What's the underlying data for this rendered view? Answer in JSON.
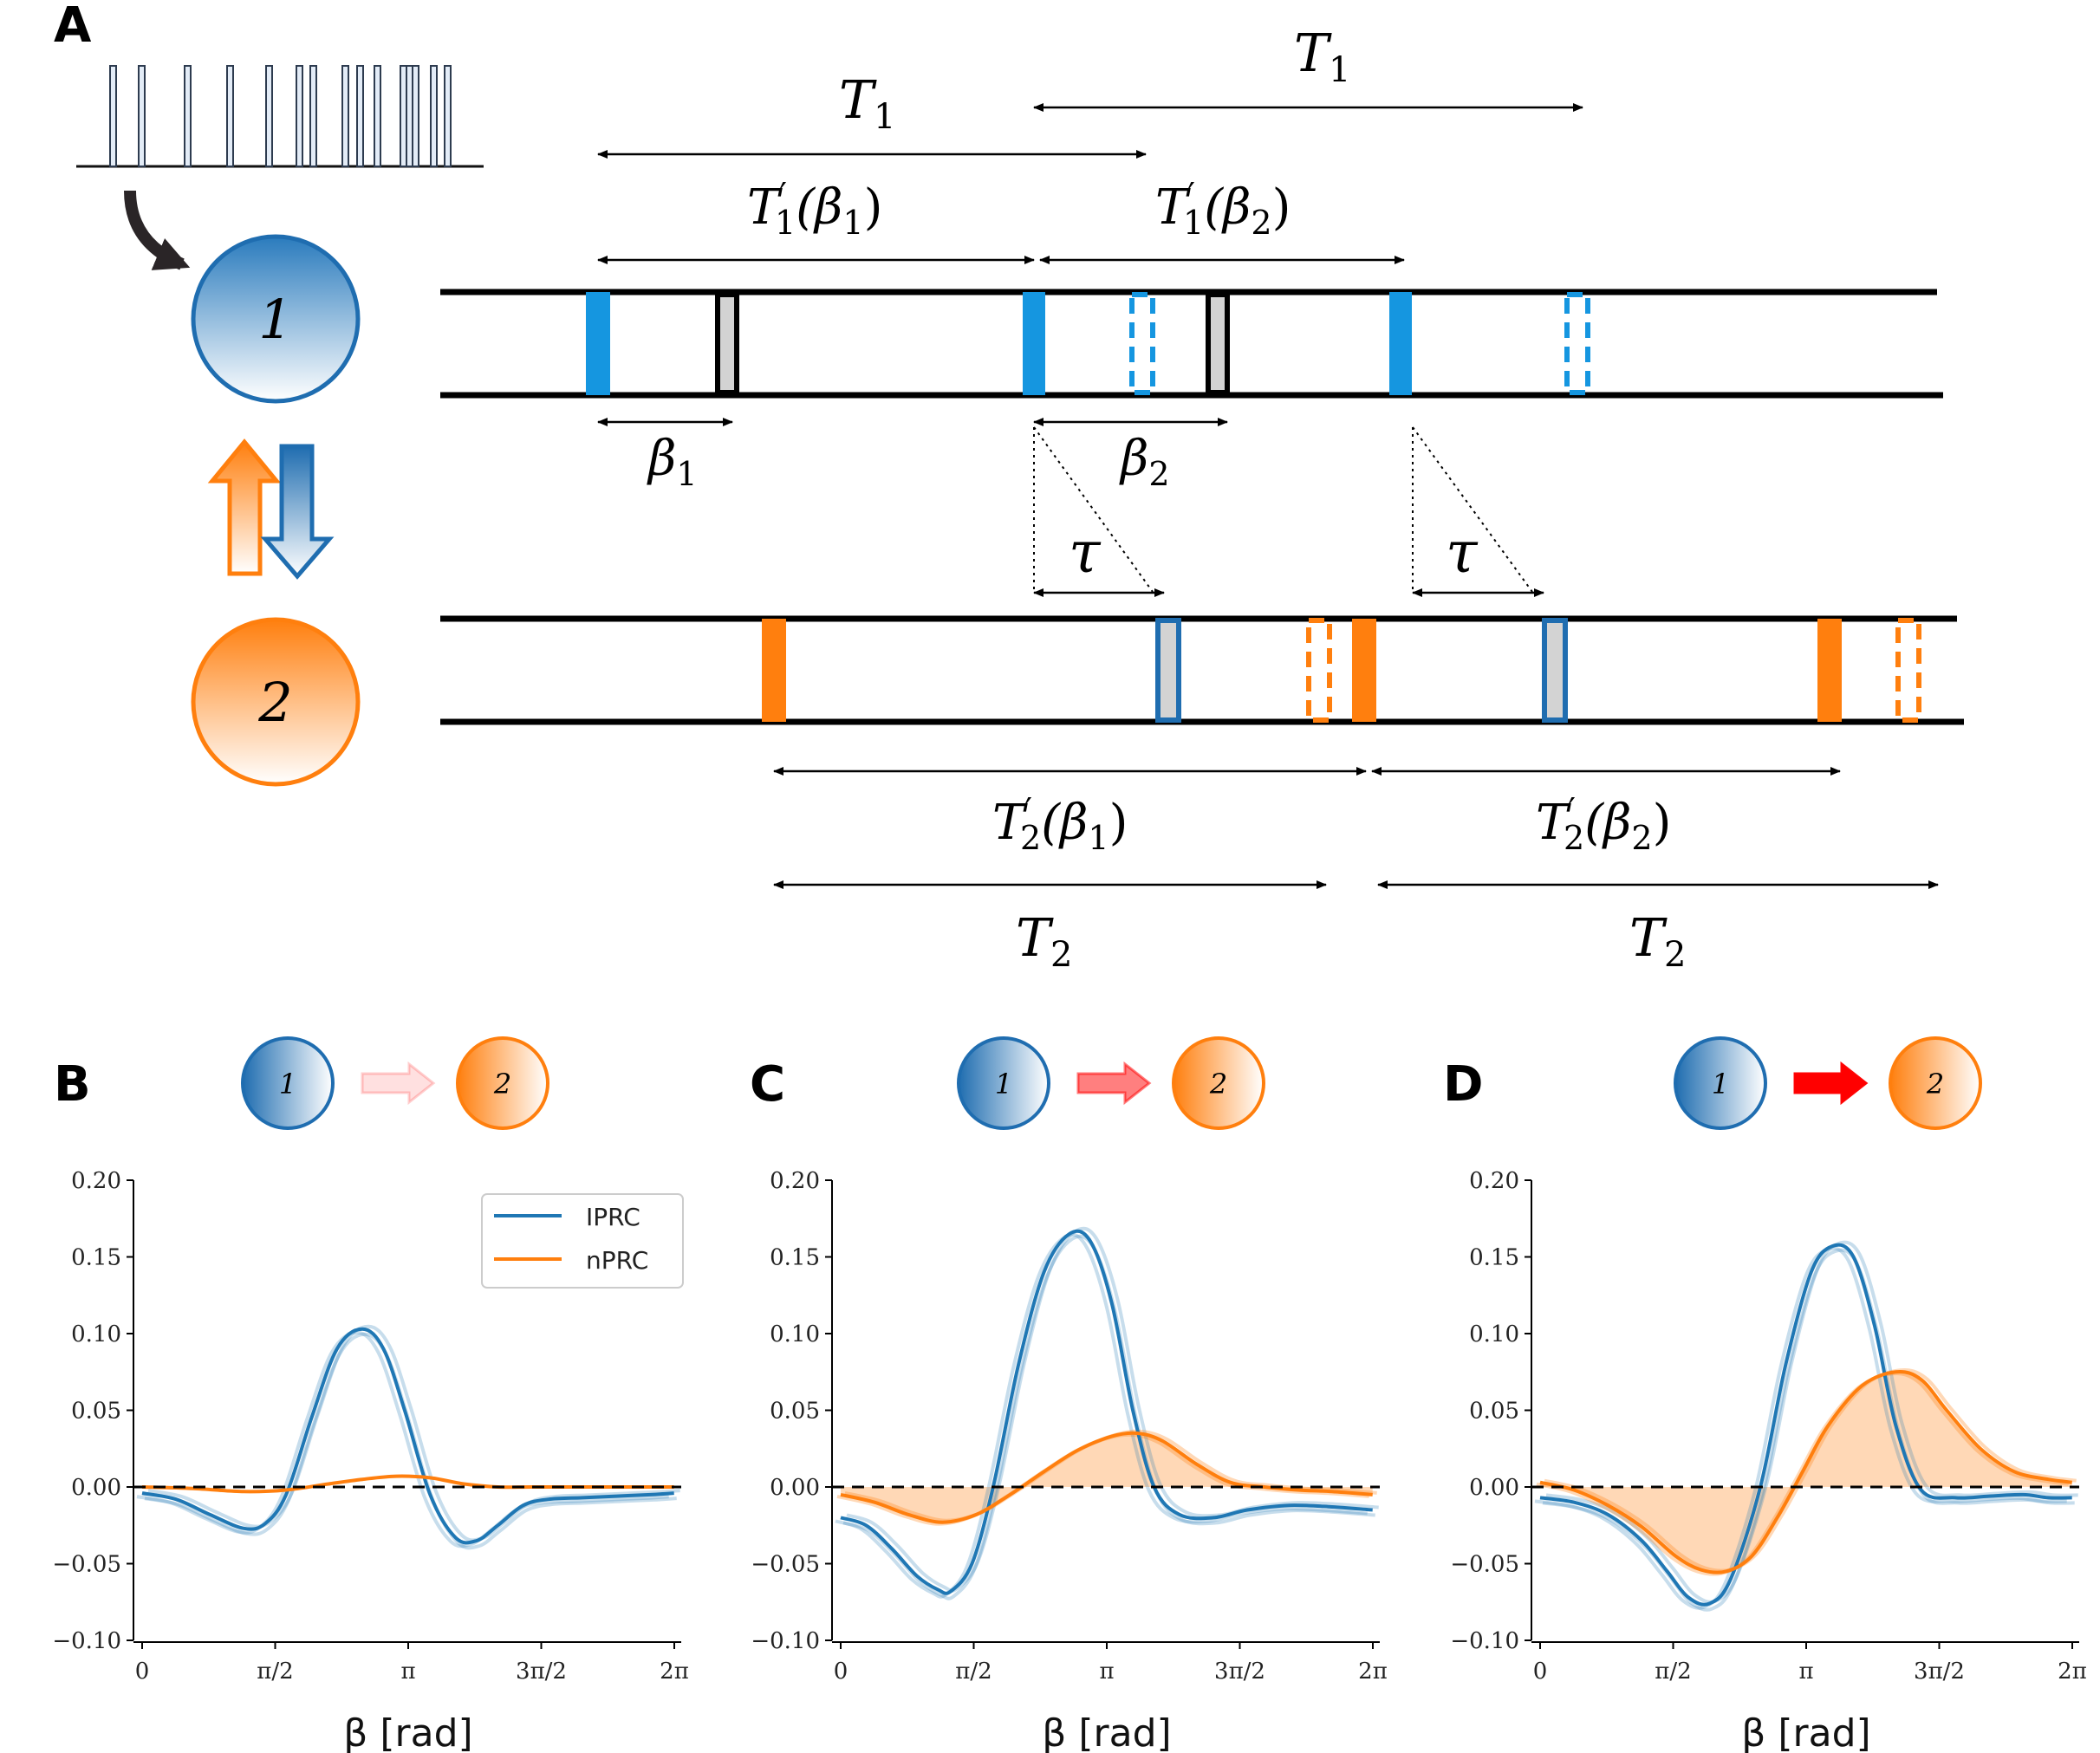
{
  "panel_labels": [
    "A",
    "B",
    "C",
    "D"
  ],
  "diagram": {
    "neuron1_label": "1",
    "neuron2_label": "2",
    "period1": "T",
    "period1_sub": "1",
    "period2": "T",
    "period2_sub": "2",
    "tprime1_beta1": "(β",
    "tprime1_beta2": "(β",
    "sub1": "1",
    "sub2": "2",
    "beta_symbol": "β",
    "tau": "τ",
    "prime": "′",
    "close_paren": ")"
  },
  "colors": {
    "blue": "#1f77b4",
    "orange": "#ff7f0e",
    "spike_blue": "#1596e0",
    "spike_orange": "#ff7f0e",
    "arrow_red": "#ff0000"
  },
  "chart_data": [
    {
      "type": "line",
      "panel": "B",
      "connection_strength_arrow": 0.12,
      "xlabel": "β [rad]",
      "ylim": [
        -0.1,
        0.2
      ],
      "xlim": [
        0,
        6.2832
      ],
      "yticks": [
        "0.20",
        "0.15",
        "0.10",
        "0.05",
        "0.00",
        "−0.05",
        "−0.10"
      ],
      "xticks": [
        "0",
        "π/2",
        "π",
        "3π/2",
        "2π"
      ],
      "legend": [
        "IPRC",
        "nPRC"
      ],
      "series": [
        {
          "name": "IPRC",
          "x": [
            0,
            0.4,
            0.8,
            1.2,
            1.45,
            1.7,
            2.0,
            2.3,
            2.6,
            2.85,
            3.1,
            3.4,
            3.7,
            3.95,
            4.2,
            4.5,
            4.8,
            5.2,
            5.6,
            6.0,
            6.28
          ],
          "y": [
            -0.004,
            -0.008,
            -0.018,
            -0.027,
            -0.024,
            -0.005,
            0.045,
            0.09,
            0.103,
            0.09,
            0.05,
            -0.005,
            -0.033,
            -0.035,
            -0.025,
            -0.012,
            -0.008,
            -0.007,
            -0.006,
            -0.005,
            -0.004
          ]
        },
        {
          "name": "nPRC",
          "x": [
            0,
            0.6,
            1.2,
            1.7,
            2.2,
            2.6,
            3.0,
            3.4,
            3.8,
            4.2,
            4.6,
            5.2,
            6.28
          ],
          "y": [
            0.0,
            -0.001,
            -0.003,
            -0.002,
            0.002,
            0.005,
            0.007,
            0.006,
            0.002,
            0.0,
            0.0,
            0.0,
            0.0
          ]
        }
      ]
    },
    {
      "type": "line",
      "panel": "C",
      "connection_strength_arrow": 0.5,
      "xlabel": "β [rad]",
      "ylim": [
        -0.1,
        0.2
      ],
      "xlim": [
        0,
        6.2832
      ],
      "yticks": [
        "0.20",
        "0.15",
        "0.10",
        "0.05",
        "0.00",
        "−0.05",
        "−0.10"
      ],
      "xticks": [
        "0",
        "π/2",
        "π",
        "3π/2",
        "2π"
      ],
      "series": [
        {
          "name": "IPRC",
          "x": [
            0,
            0.3,
            0.6,
            0.9,
            1.15,
            1.3,
            1.55,
            1.8,
            2.1,
            2.4,
            2.7,
            2.95,
            3.2,
            3.45,
            3.7,
            4.0,
            4.4,
            4.8,
            5.3,
            5.8,
            6.28
          ],
          "y": [
            -0.02,
            -0.025,
            -0.04,
            -0.058,
            -0.067,
            -0.068,
            -0.05,
            0.0,
            0.08,
            0.14,
            0.165,
            0.16,
            0.12,
            0.05,
            0.0,
            -0.018,
            -0.02,
            -0.015,
            -0.012,
            -0.013,
            -0.015
          ]
        },
        {
          "name": "nPRC",
          "x": [
            0,
            0.4,
            0.8,
            1.2,
            1.6,
            2.0,
            2.4,
            2.8,
            3.2,
            3.5,
            3.8,
            4.2,
            4.6,
            5.0,
            5.4,
            5.8,
            6.28
          ],
          "y": [
            -0.005,
            -0.01,
            -0.018,
            -0.023,
            -0.018,
            -0.005,
            0.01,
            0.024,
            0.033,
            0.035,
            0.03,
            0.015,
            0.003,
            0.0,
            -0.002,
            -0.003,
            -0.005
          ]
        }
      ]
    },
    {
      "type": "line",
      "panel": "D",
      "connection_strength_arrow": 1.0,
      "xlabel": "β [rad]",
      "ylim": [
        -0.1,
        0.2
      ],
      "xlim": [
        0,
        6.2832
      ],
      "yticks": [
        "0.20",
        "0.15",
        "0.10",
        "0.05",
        "0.00",
        "−0.05",
        "−0.10"
      ],
      "xticks": [
        "0",
        "π/2",
        "π",
        "3π/2",
        "2π"
      ],
      "series": [
        {
          "name": "IPRC",
          "x": [
            0,
            0.4,
            0.8,
            1.2,
            1.5,
            1.75,
            2.0,
            2.25,
            2.6,
            2.9,
            3.2,
            3.45,
            3.7,
            3.95,
            4.2,
            4.5,
            4.9,
            5.3,
            5.7,
            6.0,
            6.28
          ],
          "y": [
            -0.007,
            -0.01,
            -0.018,
            -0.035,
            -0.055,
            -0.072,
            -0.076,
            -0.06,
            0.0,
            0.08,
            0.14,
            0.157,
            0.15,
            0.105,
            0.04,
            -0.002,
            -0.007,
            -0.006,
            -0.005,
            -0.007,
            -0.007
          ]
        },
        {
          "name": "nPRC",
          "x": [
            0,
            0.4,
            0.8,
            1.2,
            1.6,
            1.9,
            2.2,
            2.5,
            2.8,
            3.1,
            3.4,
            3.8,
            4.2,
            4.5,
            4.8,
            5.2,
            5.6,
            6.0,
            6.28
          ],
          "y": [
            0.003,
            -0.002,
            -0.012,
            -0.026,
            -0.045,
            -0.054,
            -0.055,
            -0.045,
            -0.02,
            0.01,
            0.04,
            0.066,
            0.075,
            0.07,
            0.05,
            0.025,
            0.01,
            0.005,
            0.003
          ]
        }
      ]
    }
  ]
}
